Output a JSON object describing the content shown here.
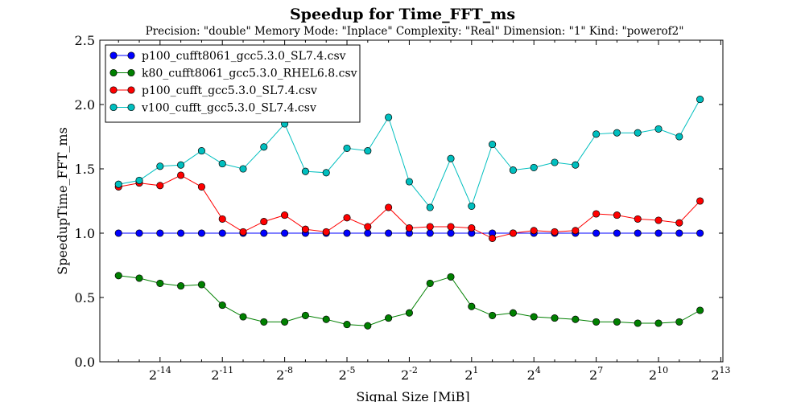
{
  "chart_data": {
    "type": "line",
    "title": "Speedup for Time_FFT_ms",
    "subtitle": "Precision: \"double\" Memory Mode: \"Inplace\" Complexity: \"Real\" Dimension: \"1\" Kind: \"powerof2\"",
    "xlabel": "Signal Size [MiB]",
    "ylabel": "SpeedupTime_FFT_ms",
    "x_scale": "log2",
    "xlim": [
      -16.9,
      13.1
    ],
    "ylim": [
      0.0,
      2.5
    ],
    "yticks": [
      0.0,
      0.5,
      1.0,
      1.5,
      2.0,
      2.5
    ],
    "ytick_labels": [
      "0.0",
      "0.5",
      "1.0",
      "1.5",
      "2.0",
      "2.5"
    ],
    "xticks_exponents": [
      -14,
      -11,
      -8,
      -5,
      -2,
      1,
      4,
      7,
      10,
      13
    ],
    "xtick_base": "2",
    "x_exponents": [
      -16,
      -15,
      -14,
      -13,
      -12,
      -11,
      -10,
      -9,
      -8,
      -7,
      -6,
      -5,
      -4,
      -3,
      -2,
      -1,
      0,
      1,
      2,
      3,
      4,
      5,
      6,
      7,
      8,
      9,
      10,
      11,
      12
    ],
    "grid": false,
    "legend_position": "top-left",
    "series": [
      {
        "name": "p100_cufft8061_gcc5.3.0_SL7.4.csv",
        "color": "#0000ff",
        "values": [
          1.0,
          1.0,
          1.0,
          1.0,
          1.0,
          1.0,
          1.0,
          1.0,
          1.0,
          1.0,
          1.0,
          1.0,
          1.0,
          1.0,
          1.0,
          1.0,
          1.0,
          1.0,
          1.0,
          1.0,
          1.0,
          1.0,
          1.0,
          1.0,
          1.0,
          1.0,
          1.0,
          1.0,
          1.0
        ]
      },
      {
        "name": "k80_cufft8061_gcc5.3.0_RHEL6.8.csv",
        "color": "#008000",
        "values": [
          0.67,
          0.65,
          0.61,
          0.59,
          0.6,
          0.44,
          0.35,
          0.31,
          0.31,
          0.36,
          0.33,
          0.29,
          0.28,
          0.34,
          0.38,
          0.61,
          0.66,
          0.43,
          0.36,
          0.38,
          0.35,
          0.34,
          0.33,
          0.31,
          0.31,
          0.3,
          0.3,
          0.31,
          0.4
        ]
      },
      {
        "name": "p100_cufft_gcc5.3.0_SL7.4.csv",
        "color": "#ff0000",
        "values": [
          1.36,
          1.39,
          1.37,
          1.45,
          1.36,
          1.11,
          1.01,
          1.09,
          1.14,
          1.03,
          1.01,
          1.12,
          1.05,
          1.2,
          1.04,
          1.05,
          1.05,
          1.04,
          0.96,
          1.0,
          1.02,
          1.01,
          1.02,
          1.15,
          1.14,
          1.11,
          1.1,
          1.08,
          1.25
        ]
      },
      {
        "name": "v100_cufft_gcc5.3.0_SL7.4.csv",
        "color": "#00bfbf",
        "values": [
          1.38,
          1.41,
          1.52,
          1.53,
          1.64,
          1.54,
          1.5,
          1.67,
          1.85,
          1.48,
          1.47,
          1.66,
          1.64,
          1.9,
          1.4,
          1.2,
          1.58,
          1.21,
          1.69,
          1.49,
          1.51,
          1.55,
          1.53,
          1.77,
          1.78,
          1.78,
          1.81,
          1.75,
          2.04
        ]
      }
    ]
  }
}
